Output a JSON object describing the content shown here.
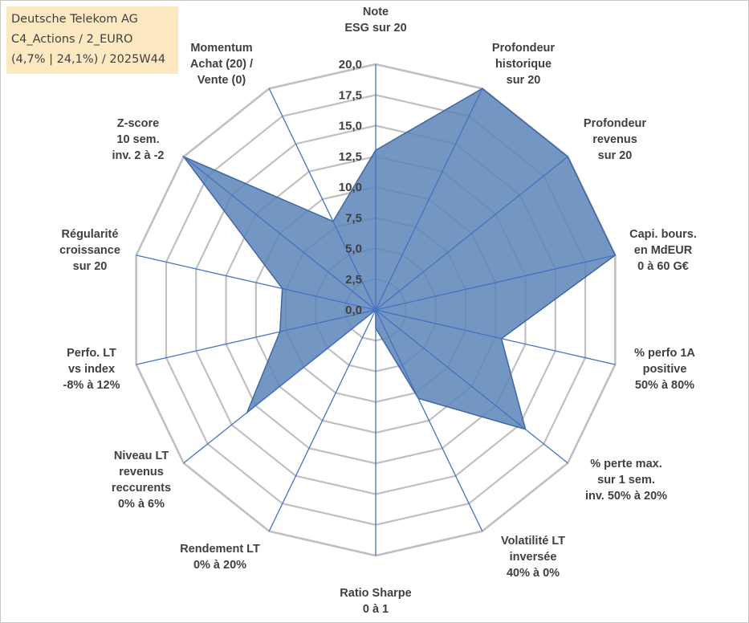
{
  "header": {
    "line1": "Deutsche Telekom AG",
    "line2": "C4_Actions / 2_EURO",
    "line3": "(4,7% | 24,1%) / 2025W44"
  },
  "chart_data": {
    "type": "radar",
    "title": "Deutsche Telekom AG",
    "rmin": 0,
    "rmax": 20,
    "ticks": [
      0,
      2.5,
      5,
      7.5,
      10,
      12.5,
      15,
      17.5,
      20
    ],
    "tick_labels": [
      "0,0",
      "2,5",
      "5,0",
      "7,5",
      "10,0",
      "12,5",
      "15,0",
      "17,5",
      "20,0"
    ],
    "axes": [
      {
        "label": [
          "Note",
          "ESG sur 20"
        ],
        "anchor": "middle"
      },
      {
        "label": [
          "Profondeur",
          "historique",
          "sur 20"
        ],
        "anchor": "middle"
      },
      {
        "label": [
          "Profondeur",
          "revenus",
          "sur 20"
        ],
        "anchor": "middle"
      },
      {
        "label": [
          "Capi. bours.",
          "en MdEUR",
          "0 à 60 G€"
        ],
        "anchor": "middle"
      },
      {
        "label": [
          "% perfo 1A",
          "positive",
          "50% à 80%"
        ],
        "anchor": "middle"
      },
      {
        "label": [
          "% perte max.",
          "sur 1 sem.",
          "inv. 50% à 20%"
        ],
        "anchor": "middle"
      },
      {
        "label": [
          "Volatilité LT",
          "inversée",
          "40% à 0%"
        ],
        "anchor": "middle"
      },
      {
        "label": [
          "Ratio Sharpe",
          "0 à 1"
        ],
        "anchor": "middle"
      },
      {
        "label": [
          "Rendement LT",
          "0% à 20%"
        ],
        "anchor": "middle"
      },
      {
        "label": [
          "Niveau LT",
          "revenus",
          "reccurents",
          "0% à 6%"
        ],
        "anchor": "middle"
      },
      {
        "label": [
          "Perfo. LT",
          "vs index",
          "-8% à 12%"
        ],
        "anchor": "middle"
      },
      {
        "label": [
          "Régularité",
          "croissance",
          "sur 20"
        ],
        "anchor": "middle"
      },
      {
        "label": [
          "Z-score",
          "10 sem.",
          "inv. 2 à -2"
        ],
        "anchor": "middle"
      },
      {
        "label": [
          "Momentum",
          "Achat (20) /",
          "Vente (0)"
        ],
        "anchor": "middle"
      }
    ],
    "series": [
      {
        "name": "Deutsche Telekom AG",
        "color": "#5b84b8",
        "stroke": "#3f67a3",
        "values": [
          13,
          20,
          20,
          20,
          10.5,
          15.6,
          8,
          1.5,
          0,
          13.4,
          8,
          7.8,
          20,
          8
        ]
      }
    ],
    "grid_color": "#c0c0c0",
    "spoke_color": "#4472c4"
  }
}
